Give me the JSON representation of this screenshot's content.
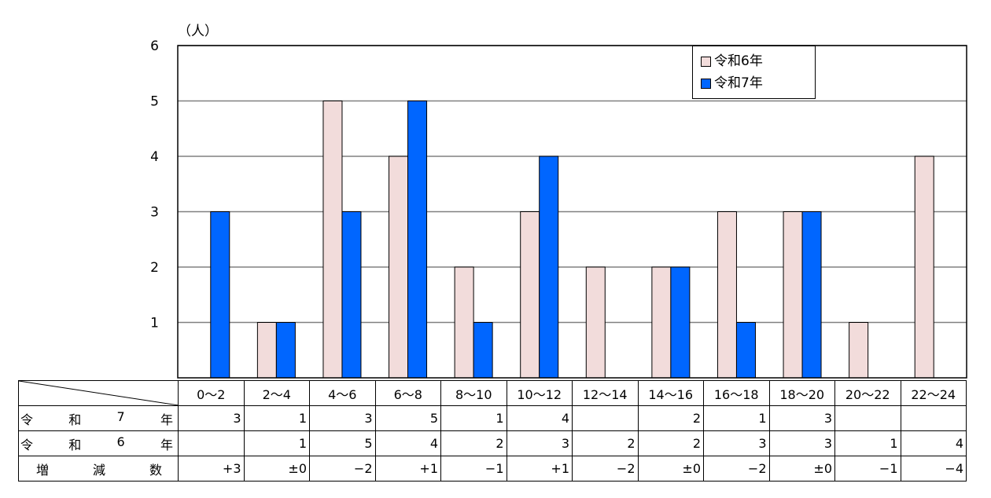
{
  "chart_data": {
    "type": "bar",
    "unit_label": "（人）",
    "categories": [
      "0～2",
      "2～4",
      "4～6",
      "6～8",
      "8～10",
      "10～12",
      "12～14",
      "14～16",
      "16～18",
      "18～20",
      "20～22",
      "22～24"
    ],
    "series": [
      {
        "name": "令和6年",
        "color": "#f2dcdb",
        "values": [
          0,
          1,
          5,
          4,
          2,
          3,
          2,
          2,
          3,
          3,
          1,
          4
        ]
      },
      {
        "name": "令和7年",
        "color": "#0066ff",
        "values": [
          3,
          1,
          3,
          5,
          1,
          4,
          0,
          2,
          1,
          3,
          0,
          0
        ]
      }
    ],
    "ylim": [
      0,
      6
    ],
    "yticks": [
      "1",
      "2",
      "3",
      "4",
      "5",
      "6"
    ],
    "grid": true,
    "legend_position": "top-right"
  },
  "table": {
    "rows": [
      {
        "label": [
          "令",
          "和",
          "7",
          "年"
        ],
        "cells": [
          "3",
          "1",
          "3",
          "5",
          "1",
          "4",
          "",
          "2",
          "1",
          "3",
          "",
          ""
        ]
      },
      {
        "label": [
          "令",
          "和",
          "6",
          "年"
        ],
        "cells": [
          "",
          "1",
          "5",
          "4",
          "2",
          "3",
          "2",
          "2",
          "3",
          "3",
          "1",
          "4"
        ]
      },
      {
        "label": [
          "増",
          "減",
          "数"
        ],
        "cells": [
          "+3",
          "±0",
          "−2",
          "+1",
          "−1",
          "+1",
          "−2",
          "±0",
          "−2",
          "±0",
          "−1",
          "−4"
        ]
      }
    ]
  }
}
